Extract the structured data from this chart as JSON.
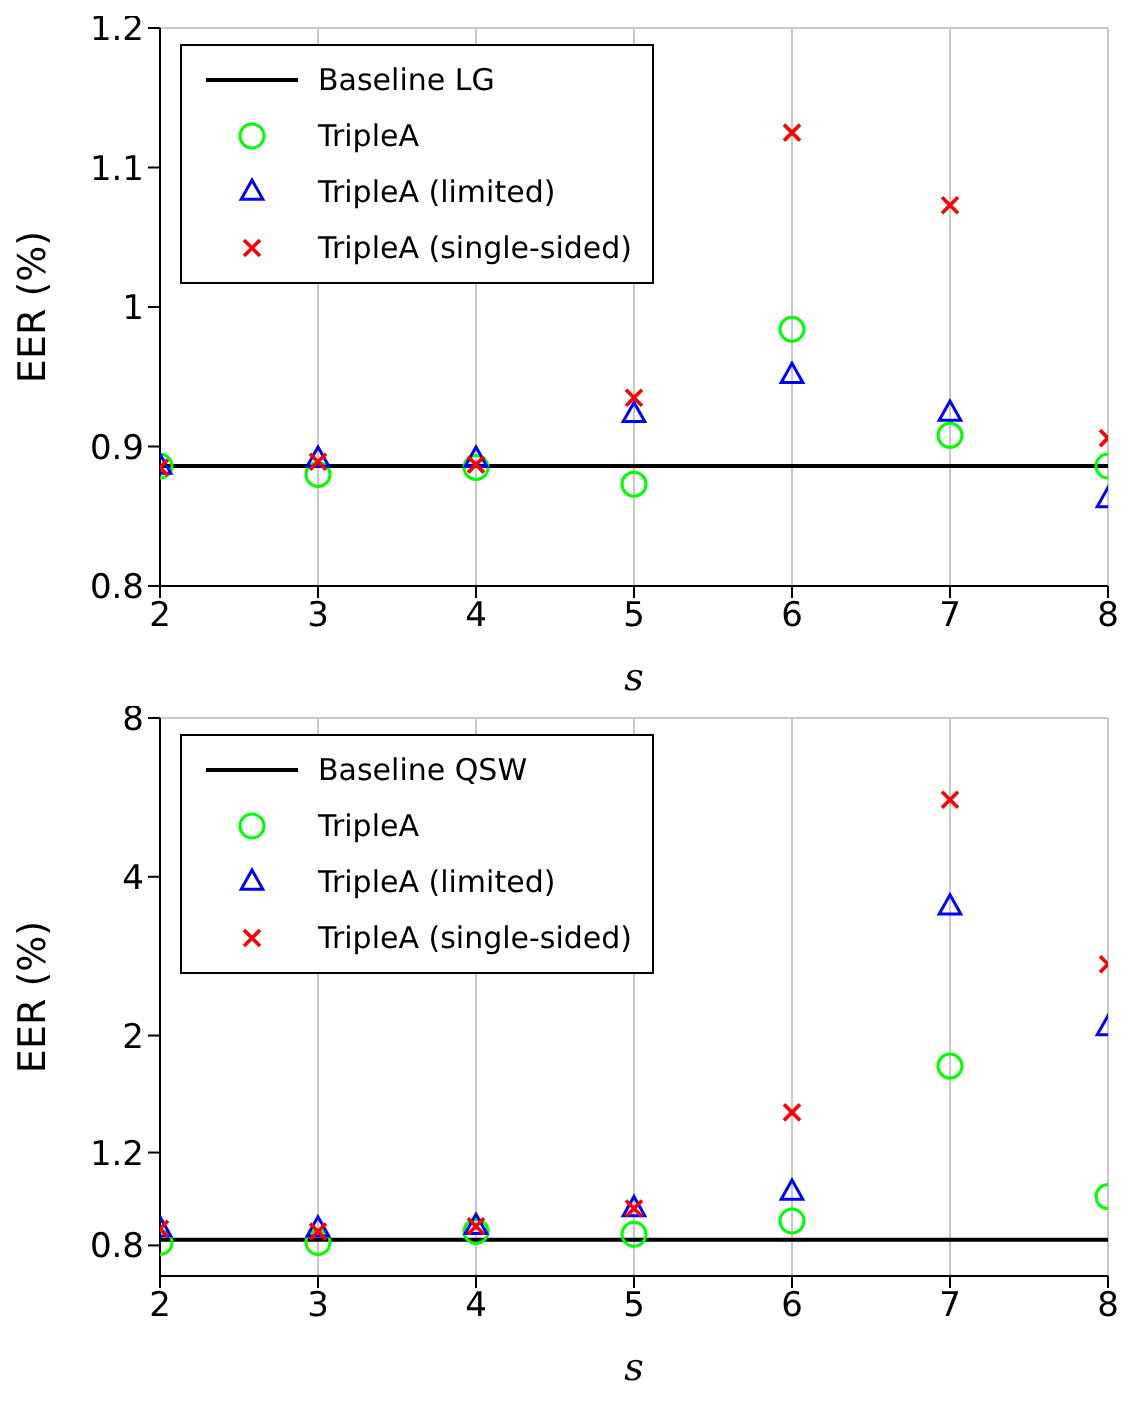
{
  "chart_data": [
    {
      "type": "scatter",
      "xlabel": "s",
      "ylabel": "EER (%)",
      "x": [
        2,
        3,
        4,
        5,
        6,
        7,
        8
      ],
      "xlim": [
        2,
        8
      ],
      "xticks": [
        2,
        3,
        4,
        5,
        6,
        7,
        8
      ],
      "ylim": [
        0.8,
        1.2
      ],
      "yticks": [
        0.8,
        0.9,
        1,
        1.1,
        1.2
      ],
      "grid": true,
      "legend": "top left",
      "series": [
        {
          "name": "Baseline LG",
          "type": "line",
          "marker": "none",
          "line_style": "solid",
          "color": "#000000",
          "values": [
            0.886,
            0.886,
            0.886,
            0.886,
            0.886,
            0.886,
            0.886
          ]
        },
        {
          "name": "TripleA",
          "marker": "circle",
          "color": "#00ff00",
          "values": [
            0.886,
            0.88,
            0.885,
            0.873,
            0.984,
            0.908,
            0.886
          ]
        },
        {
          "name": "TripleA (limited)",
          "marker": "triangle",
          "color": "#0000ff",
          "values": [
            0.886,
            0.891,
            0.891,
            0.923,
            0.951,
            0.924,
            0.862
          ]
        },
        {
          "name": "TripleA (single-sided)",
          "marker": "cross",
          "color": "#ff0000",
          "values": [
            0.885,
            0.889,
            0.887,
            0.935,
            1.125,
            1.073,
            0.906
          ]
        }
      ]
    },
    {
      "type": "scatter",
      "xlabel": "s",
      "ylabel": "EER (%)",
      "x": [
        2,
        3,
        4,
        5,
        6,
        7,
        8
      ],
      "xlim": [
        2,
        8
      ],
      "xticks": [
        2,
        3,
        4,
        5,
        6,
        7,
        8
      ],
      "ylim": [
        0.7,
        8
      ],
      "yticks": [
        0.8,
        1.2,
        2,
        4,
        8
      ],
      "log": "y",
      "grid": true,
      "legend": "top left",
      "series": [
        {
          "name": "Baseline QSW",
          "type": "line",
          "marker": "none",
          "line_style": "solid",
          "color": "#000000",
          "values": [
            0.82,
            0.82,
            0.82,
            0.82,
            0.82,
            0.82,
            0.82
          ]
        },
        {
          "name": "TripleA",
          "marker": "circle",
          "color": "#00ff00",
          "values": [
            0.81,
            0.81,
            0.85,
            0.84,
            0.89,
            1.75,
            0.99
          ]
        },
        {
          "name": "TripleA (limited)",
          "marker": "triangle",
          "color": "#0000ff",
          "values": [
            0.86,
            0.86,
            0.87,
            0.94,
            1.01,
            3.51,
            2.07
          ]
        },
        {
          "name": "TripleA (single-sided)",
          "marker": "cross",
          "color": "#ff0000",
          "values": [
            0.86,
            0.85,
            0.87,
            0.94,
            1.43,
            5.6,
            2.73
          ]
        }
      ]
    }
  ]
}
